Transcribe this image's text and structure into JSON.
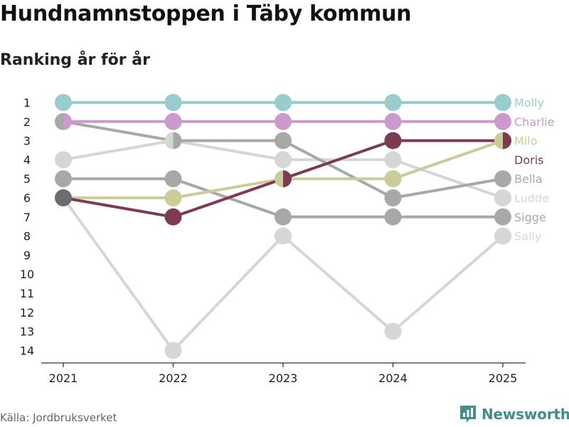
{
  "header": {
    "title": "Hundnamnstoppen i Täby kommun",
    "subtitle": "Ranking år för år"
  },
  "footer": {
    "source": "Källa: Jordbruksverket",
    "brand": "Newsworthy"
  },
  "chart_data": {
    "type": "line",
    "x": [
      "2021",
      "2022",
      "2023",
      "2024",
      "2025"
    ],
    "y_ticks": [
      "1",
      "2",
      "3",
      "4",
      "5",
      "6",
      "7",
      "8",
      "9",
      "10",
      "11",
      "12",
      "13",
      "14"
    ],
    "ylim": [
      1,
      14
    ],
    "y_reversed": true,
    "series": [
      {
        "name": "Sally",
        "values": [
          6,
          14,
          8,
          13,
          8
        ],
        "color": "#d6d6d6"
      },
      {
        "name": "Ludde",
        "values": [
          4,
          3,
          4,
          4,
          6
        ],
        "color": "#d6d6d6"
      },
      {
        "name": "Sigge",
        "values": [
          5,
          5,
          7,
          7,
          7
        ],
        "color": "#a8a8a8"
      },
      {
        "name": "Bella",
        "values": [
          2,
          3,
          3,
          6,
          5
        ],
        "color": "#a8a8a8"
      },
      {
        "name": "Milo",
        "values": [
          6,
          6,
          5,
          5,
          3
        ],
        "color": "#cccc99"
      },
      {
        "name": "Doris",
        "values": [
          6,
          7,
          5,
          3,
          3
        ],
        "color": "#7d3b53"
      },
      {
        "name": "Charlie",
        "values": [
          2,
          2,
          2,
          2,
          2
        ],
        "color": "#cc99cc"
      },
      {
        "name": "Molly",
        "values": [
          1,
          1,
          1,
          1,
          1
        ],
        "color": "#99cccc"
      }
    ],
    "end_labels": [
      {
        "name": "Molly",
        "color": "#99cccc"
      },
      {
        "name": "Charlie",
        "color": "#cc99cc"
      },
      {
        "name": "Milo",
        "color": "#cccc99"
      },
      {
        "name": "Doris",
        "color": "#7d3b53"
      },
      {
        "name": "Bella",
        "color": "#a8a8a8"
      },
      {
        "name": "Ludde",
        "color": "#d6d6d6"
      },
      {
        "name": "Sigge",
        "color": "#a8a8a8"
      },
      {
        "name": "Sally",
        "color": "#d6d6d6"
      }
    ],
    "grid": false,
    "legend": "right"
  }
}
